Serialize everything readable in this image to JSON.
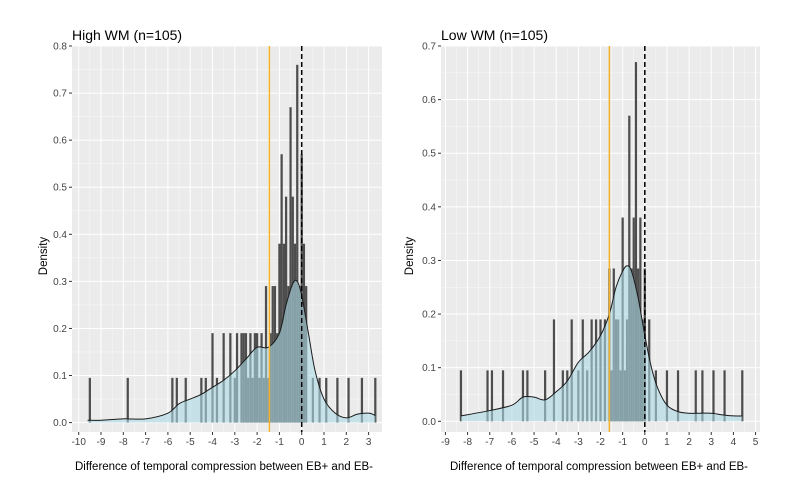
{
  "chart_data": [
    {
      "type": "histogram",
      "title": "High WM (n=105)",
      "xlabel": "Difference of temporal compression between EB+ and EB-",
      "ylabel": "Density",
      "xlim": [
        -10.3,
        3.6
      ],
      "ylim": [
        -0.02,
        0.8
      ],
      "xticks": [
        -10,
        -9,
        -8,
        -7,
        -6,
        -5,
        -4,
        -3,
        -2,
        -1,
        0,
        1,
        2,
        3
      ],
      "yticks": [
        0.0,
        0.1,
        0.2,
        0.3,
        0.4,
        0.5,
        0.6,
        0.7,
        0.8
      ],
      "bin_width": 0.1,
      "histogram": {
        "x": [
          -9.5,
          -7.8,
          -5.8,
          -5.6,
          -5.2,
          -4.5,
          -4.3,
          -4.0,
          -3.8,
          -3.5,
          -3.2,
          -3.0,
          -2.9,
          -2.7,
          -2.6,
          -2.5,
          -2.4,
          -2.3,
          -2.2,
          -2.1,
          -2.0,
          -1.9,
          -1.8,
          -1.7,
          -1.6,
          -1.5,
          -1.4,
          -1.3,
          -1.2,
          -1.1,
          -1.0,
          -0.9,
          -0.8,
          -0.7,
          -0.6,
          -0.5,
          -0.4,
          -0.3,
          -0.2,
          -0.1,
          0.0,
          0.1,
          0.2,
          0.5,
          0.8,
          1.1,
          1.6,
          2.1,
          2.7,
          3.3
        ],
        "density": [
          0.095,
          0.095,
          0.095,
          0.095,
          0.095,
          0.095,
          0.095,
          0.19,
          0.095,
          0.19,
          0.19,
          0.095,
          0.19,
          0.19,
          0.19,
          0.19,
          0.095,
          0.19,
          0.095,
          0.19,
          0.19,
          0.095,
          0.19,
          0.095,
          0.29,
          0.095,
          0.19,
          0.29,
          0.29,
          0.19,
          0.38,
          0.57,
          0.38,
          0.48,
          0.29,
          0.67,
          0.48,
          0.38,
          0.76,
          0.29,
          0.57,
          0.38,
          0.29,
          0.095,
          0.095,
          0.095,
          0.095,
          0.095,
          0.095,
          0.095
        ]
      },
      "density_curve": {
        "x": [
          -9.6,
          -9.0,
          -8.0,
          -7.0,
          -6.0,
          -5.5,
          -5.0,
          -4.5,
          -4.0,
          -3.5,
          -3.0,
          -2.5,
          -2.0,
          -1.5,
          -1.0,
          -0.7,
          -0.4,
          -0.2,
          0.0,
          0.3,
          0.6,
          1.0,
          1.5,
          2.0,
          2.5,
          3.0,
          3.3
        ],
        "y": [
          0.005,
          0.005,
          0.008,
          0.008,
          0.02,
          0.04,
          0.05,
          0.06,
          0.075,
          0.09,
          0.11,
          0.135,
          0.16,
          0.16,
          0.19,
          0.25,
          0.295,
          0.3,
          0.27,
          0.19,
          0.11,
          0.05,
          0.02,
          0.01,
          0.018,
          0.02,
          0.015
        ]
      },
      "mean_line": {
        "x": -1.45,
        "color": "#F4B12A"
      },
      "zero_line": {
        "x": 0
      }
    },
    {
      "type": "histogram",
      "title": "Low WM (n=105)",
      "xlabel": "Difference of temporal compression between EB+ and EB-",
      "ylabel": "Density",
      "xlim": [
        -9.2,
        5.2
      ],
      "ylim": [
        -0.02,
        0.7
      ],
      "xticks": [
        -9,
        -8,
        -7,
        -6,
        -5,
        -4,
        -3,
        -2,
        -1,
        0,
        1,
        2,
        3,
        4,
        5
      ],
      "yticks": [
        0.0,
        0.1,
        0.2,
        0.3,
        0.4,
        0.5,
        0.6,
        0.7
      ],
      "bin_width": 0.1,
      "histogram": {
        "x": [
          -8.3,
          -7.1,
          -6.9,
          -6.4,
          -5.5,
          -5.3,
          -4.5,
          -4.1,
          -3.7,
          -3.5,
          -3.3,
          -3.0,
          -2.8,
          -2.6,
          -2.4,
          -2.2,
          -2.0,
          -1.8,
          -1.6,
          -1.5,
          -1.4,
          -1.3,
          -1.2,
          -1.1,
          -1.0,
          -0.9,
          -0.8,
          -0.7,
          -0.6,
          -0.5,
          -0.4,
          -0.3,
          -0.2,
          -0.1,
          0.0,
          0.2,
          0.5,
          1.0,
          1.5,
          2.3,
          2.6,
          3.1,
          3.6,
          4.4
        ],
        "density": [
          0.095,
          0.095,
          0.095,
          0.095,
          0.095,
          0.095,
          0.095,
          0.19,
          0.095,
          0.095,
          0.19,
          0.095,
          0.19,
          0.095,
          0.19,
          0.19,
          0.19,
          0.19,
          0.285,
          0.095,
          0.285,
          0.19,
          0.19,
          0.095,
          0.38,
          0.095,
          0.19,
          0.57,
          0.285,
          0.38,
          0.67,
          0.285,
          0.38,
          0.19,
          0.285,
          0.19,
          0.095,
          0.095,
          0.095,
          0.095,
          0.095,
          0.095,
          0.095,
          0.095
        ]
      },
      "density_curve": {
        "x": [
          -8.3,
          -7.0,
          -6.0,
          -5.5,
          -5.0,
          -4.5,
          -4.0,
          -3.5,
          -3.0,
          -2.5,
          -2.0,
          -1.6,
          -1.3,
          -1.0,
          -0.8,
          -0.6,
          -0.3,
          0.0,
          0.3,
          0.6,
          1.0,
          1.5,
          2.0,
          2.5,
          3.0,
          3.5,
          4.0,
          4.4
        ],
        "y": [
          0.01,
          0.02,
          0.03,
          0.045,
          0.045,
          0.04,
          0.055,
          0.075,
          0.11,
          0.13,
          0.16,
          0.2,
          0.25,
          0.28,
          0.29,
          0.28,
          0.23,
          0.16,
          0.1,
          0.06,
          0.03,
          0.018,
          0.015,
          0.015,
          0.015,
          0.012,
          0.01,
          0.01
        ]
      },
      "mean_line": {
        "x": -1.6,
        "color": "#F4B12A"
      },
      "zero_line": {
        "x": 0
      }
    }
  ],
  "style": {
    "panel_background": "#EBEBEB",
    "grid_color": "#FFFFFF",
    "bar_color": "#4D4D4D",
    "density_fill": "#ADD8E6",
    "density_line": "#1A1A1A",
    "mean_line_color": "#F4B12A"
  }
}
